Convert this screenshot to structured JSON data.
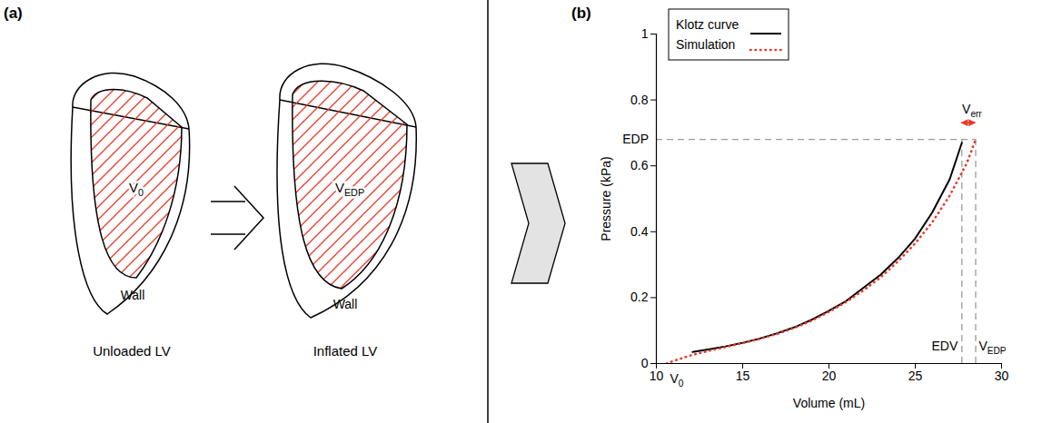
{
  "diagram": {
    "panel_label": "(a)",
    "unloaded": {
      "cavity": {
        "text": "V",
        "sub": "0"
      },
      "wall": "Wall",
      "caption": "Unloaded LV"
    },
    "inflated": {
      "cavity": {
        "text": "V",
        "sub": "EDP"
      },
      "wall": "Wall",
      "caption": "Inflated LV"
    }
  },
  "chart_data": {
    "type": "line",
    "panel_label": "(b)",
    "x_label": "Volume (mL)",
    "y_label": "Pressure (kPa)",
    "xlim": [
      10,
      30
    ],
    "xticks": [
      10,
      15,
      20,
      25,
      30
    ],
    "ylim": [
      0,
      1
    ],
    "yticks": [
      0,
      0.2,
      0.4,
      0.6,
      0.8,
      1
    ],
    "grid": false,
    "legend": "top-left",
    "series": [
      {
        "name": "Klotz curve",
        "color": "#000000",
        "line_style": "solid",
        "x": [
          12.1,
          13,
          14,
          15,
          16,
          17,
          18,
          19,
          20,
          21,
          22,
          23,
          24,
          25,
          26,
          27,
          27.7
        ],
        "values": [
          0.035,
          0.043,
          0.052,
          0.063,
          0.076,
          0.092,
          0.11,
          0.133,
          0.16,
          0.19,
          0.23,
          0.27,
          0.32,
          0.38,
          0.46,
          0.56,
          0.67
        ]
      },
      {
        "name": "Simulation",
        "color": "#e8392a",
        "line_style": "dotted",
        "x": [
          10.6,
          11,
          12,
          13,
          14,
          15,
          16,
          17,
          18,
          19,
          20,
          21,
          22,
          23,
          24,
          25,
          26,
          27,
          28,
          28.5
        ],
        "values": [
          0,
          0.008,
          0.025,
          0.038,
          0.05,
          0.062,
          0.075,
          0.09,
          0.108,
          0.13,
          0.157,
          0.187,
          0.222,
          0.262,
          0.31,
          0.365,
          0.43,
          0.51,
          0.61,
          0.68
        ]
      }
    ],
    "annotations": {
      "EDP": {
        "label": "EDP",
        "y": 0.68
      },
      "EDV": {
        "label": "EDV",
        "x": 27.7
      },
      "V_EDP": {
        "label": {
          "text": "V",
          "sub": "EDP"
        },
        "x": 28.5
      },
      "V0": {
        "label": {
          "text": "V",
          "sub": "0"
        },
        "x": 10.6
      },
      "V_err": {
        "label": {
          "text": "V",
          "sub": "err"
        },
        "x1": 27.7,
        "x2": 28.5,
        "color": "#e8392a"
      }
    }
  }
}
